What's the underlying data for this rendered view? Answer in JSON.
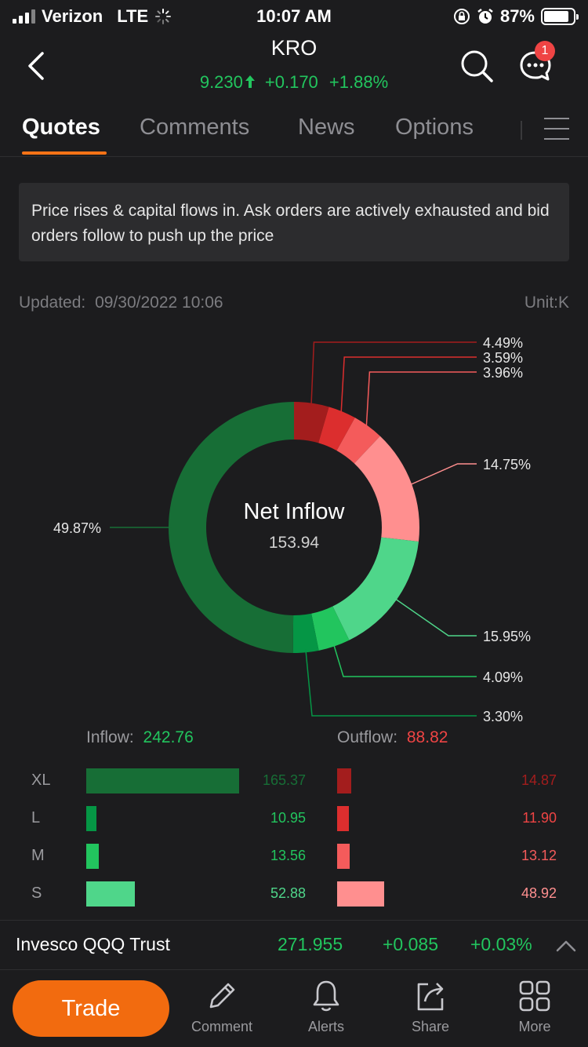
{
  "status_bar": {
    "carrier": "Verizon",
    "network": "LTE",
    "time": "10:07 AM",
    "battery": "87%"
  },
  "header": {
    "symbol": "KRO",
    "price": "9.230",
    "change": "+0.170",
    "change_pct": "+1.88%",
    "notification_count": "1"
  },
  "tabs": [
    {
      "label": "Quotes",
      "active": true
    },
    {
      "label": "Comments"
    },
    {
      "label": "News"
    },
    {
      "label": "Options"
    }
  ],
  "insight_text": "Price rises & capital flows in. Ask orders are actively exhausted and bid orders follow to push up the price",
  "updated": {
    "label": "Updated:",
    "value": "09/30/2022 10:06"
  },
  "unit": "Unit:K",
  "net_inflow": {
    "label": "Net Inflow",
    "value": "153.94"
  },
  "flow_totals": {
    "inflow_label": "Inflow:",
    "inflow": "242.76",
    "outflow_label": "Outflow:",
    "outflow": "88.82"
  },
  "rows": [
    {
      "label": "XL",
      "inflow": "165.37",
      "outflow": "14.87"
    },
    {
      "label": "L",
      "inflow": "10.95",
      "outflow": "11.90"
    },
    {
      "label": "M",
      "inflow": "13.56",
      "outflow": "13.12"
    },
    {
      "label": "S",
      "inflow": "52.88",
      "outflow": "48.92"
    }
  ],
  "colors": {
    "outflow": [
      "#a31d1d",
      "#dc2e2e",
      "#f45b5b",
      "#ff8f8f"
    ],
    "inflow": [
      "#4fd68a",
      "#22c55e",
      "#059645",
      "#176e36"
    ],
    "bar_in": [
      "#176e36",
      "#059645",
      "#22c55e",
      "#4fd68a"
    ],
    "bar_out": [
      "#a31d1d",
      "#dc2e2e",
      "#f45b5b",
      "#ff8f8f"
    ],
    "val_in": [
      "#176e36",
      "#22c55e",
      "#22c55e",
      "#4fd68a"
    ],
    "val_out": [
      "#a31d1d",
      "#ef4444",
      "#f45b5b",
      "#ff8f8f"
    ]
  },
  "chart_data": {
    "type": "pie",
    "title": "Net Inflow",
    "slices": [
      {
        "group": "outflow",
        "size": "XL",
        "pct": 4.49,
        "label": "4.49%"
      },
      {
        "group": "outflow",
        "size": "L",
        "pct": 3.59,
        "label": "3.59%"
      },
      {
        "group": "outflow",
        "size": "M",
        "pct": 3.96,
        "label": "3.96%"
      },
      {
        "group": "outflow",
        "size": "S",
        "pct": 14.75,
        "label": "14.75%"
      },
      {
        "group": "inflow",
        "size": "S",
        "pct": 15.95,
        "label": "15.95%"
      },
      {
        "group": "inflow",
        "size": "M",
        "pct": 4.09,
        "label": "4.09%"
      },
      {
        "group": "inflow",
        "size": "L",
        "pct": 3.3,
        "label": "3.30%"
      },
      {
        "group": "inflow",
        "size": "XL",
        "pct": 49.87,
        "label": "49.87%"
      }
    ],
    "inflow": {
      "XL": 165.37,
      "L": 10.95,
      "M": 13.56,
      "S": 52.88
    },
    "outflow": {
      "XL": 14.87,
      "L": 11.9,
      "M": 13.12,
      "S": 48.92
    }
  },
  "bottom_ticker": {
    "name": "Invesco QQQ Trust",
    "price": "271.955",
    "change": "+0.085",
    "change_pct": "+0.03%"
  },
  "bottom_bar": {
    "trade": "Trade",
    "comment": "Comment",
    "alerts": "Alerts",
    "share": "Share",
    "more": "More"
  }
}
